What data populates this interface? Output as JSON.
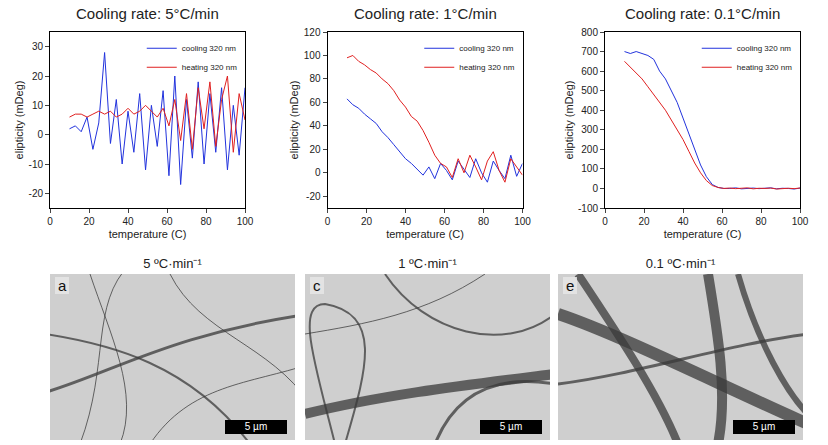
{
  "chart_data": [
    {
      "type": "line",
      "title": "Cooling rate: 5°C/min",
      "x_label": "temperature (C)",
      "y_label": "elipticity (mDeg)",
      "x": [
        10,
        13,
        16,
        19,
        22,
        25,
        28,
        31,
        34,
        37,
        40,
        43,
        46,
        49,
        52,
        55,
        58,
        61,
        64,
        67,
        70,
        73,
        76,
        79,
        82,
        85,
        88,
        91,
        94,
        97,
        100
      ],
      "xlim": [
        0,
        100
      ],
      "xticks": [
        0,
        20,
        40,
        60,
        80,
        100
      ],
      "ylim": [
        -25,
        35
      ],
      "yticks": [
        -20,
        -10,
        0,
        10,
        20,
        30
      ],
      "legend": "upper right",
      "series": [
        {
          "name": "cooling 320 nm",
          "color": "#2233dd",
          "values": [
            2,
            3,
            1,
            6,
            -5,
            4,
            28,
            -3,
            12,
            -10,
            8,
            -6,
            14,
            -12,
            10,
            -4,
            15,
            -14,
            20,
            -17,
            12,
            -8,
            18,
            -10,
            14,
            -6,
            16,
            -12,
            10,
            -7,
            16
          ]
        },
        {
          "name": "heating 320 nm",
          "color": "#e02020",
          "values": [
            6,
            7,
            7,
            6,
            7,
            8,
            7,
            8,
            6,
            7,
            9,
            7,
            8,
            10,
            8,
            6,
            9,
            3,
            12,
            -2,
            14,
            -5,
            16,
            2,
            18,
            -4,
            12,
            20,
            -6,
            14,
            5
          ]
        }
      ]
    },
    {
      "type": "line",
      "title": "Cooling rate: 1°C/min",
      "x_label": "temperature (C)",
      "y_label": "elipticity (mDeg)",
      "x": [
        10,
        13,
        16,
        19,
        22,
        25,
        28,
        31,
        34,
        37,
        40,
        43,
        46,
        49,
        52,
        55,
        58,
        61,
        64,
        67,
        70,
        73,
        76,
        79,
        82,
        85,
        88,
        91,
        94,
        97,
        100
      ],
      "xlim": [
        0,
        100
      ],
      "xticks": [
        0,
        20,
        40,
        60,
        80,
        100
      ],
      "ylim": [
        -30,
        120
      ],
      "yticks": [
        -20,
        0,
        20,
        40,
        60,
        80,
        100,
        120
      ],
      "legend": "upper right",
      "series": [
        {
          "name": "cooling 320 nm",
          "color": "#2233dd",
          "values": [
            63,
            58,
            55,
            50,
            46,
            42,
            35,
            30,
            24,
            18,
            12,
            8,
            3,
            -2,
            5,
            -5,
            8,
            2,
            -6,
            10,
            3,
            -4,
            12,
            0,
            -8,
            10,
            2,
            -5,
            15,
            -3,
            8
          ]
        },
        {
          "name": "heating 320 nm",
          "color": "#e02020",
          "values": [
            98,
            100,
            95,
            92,
            88,
            85,
            80,
            76,
            70,
            62,
            56,
            48,
            44,
            36,
            26,
            15,
            8,
            5,
            -4,
            12,
            0,
            15,
            5,
            -6,
            10,
            18,
            2,
            -8,
            12,
            5,
            -2
          ]
        }
      ]
    },
    {
      "type": "line",
      "title": "Cooling rate: 0.1°C/min",
      "x_label": "temperature (C)",
      "y_label": "elipticity (mDeg)",
      "x": [
        10,
        13,
        16,
        19,
        22,
        25,
        28,
        31,
        34,
        37,
        40,
        43,
        46,
        49,
        52,
        55,
        58,
        61,
        64,
        67,
        70,
        73,
        76,
        79,
        82,
        85,
        88,
        91,
        94,
        97,
        100
      ],
      "xlim": [
        0,
        100
      ],
      "xticks": [
        0,
        20,
        40,
        60,
        80,
        100
      ],
      "ylim": [
        -100,
        800
      ],
      "yticks": [
        -100,
        0,
        100,
        200,
        300,
        400,
        500,
        600,
        700,
        800
      ],
      "legend": "upper right",
      "series": [
        {
          "name": "cooling 320 nm",
          "color": "#2233dd",
          "values": [
            700,
            690,
            700,
            690,
            680,
            660,
            600,
            560,
            500,
            440,
            360,
            280,
            200,
            120,
            60,
            20,
            5,
            0,
            0,
            3,
            -2,
            0,
            2,
            -1,
            0,
            3,
            -2,
            1,
            0,
            -3,
            2
          ]
        },
        {
          "name": "heating 320 nm",
          "color": "#e02020",
          "values": [
            650,
            620,
            590,
            560,
            520,
            480,
            440,
            400,
            350,
            300,
            250,
            190,
            130,
            80,
            40,
            15,
            5,
            0,
            2,
            -1,
            0,
            3,
            -2,
            1,
            0,
            2,
            -3,
            0,
            1,
            -1,
            2
          ]
        }
      ]
    }
  ],
  "images": [
    {
      "title": "5 ºC·min⁻¹",
      "letter": "a",
      "scale_bar": "5 µm"
    },
    {
      "title": "1 ºC·min⁻¹",
      "letter": "c",
      "scale_bar": "5 µm"
    },
    {
      "title": "0.1 ºC·min⁻¹",
      "letter": "e",
      "scale_bar": "5 µm"
    }
  ]
}
